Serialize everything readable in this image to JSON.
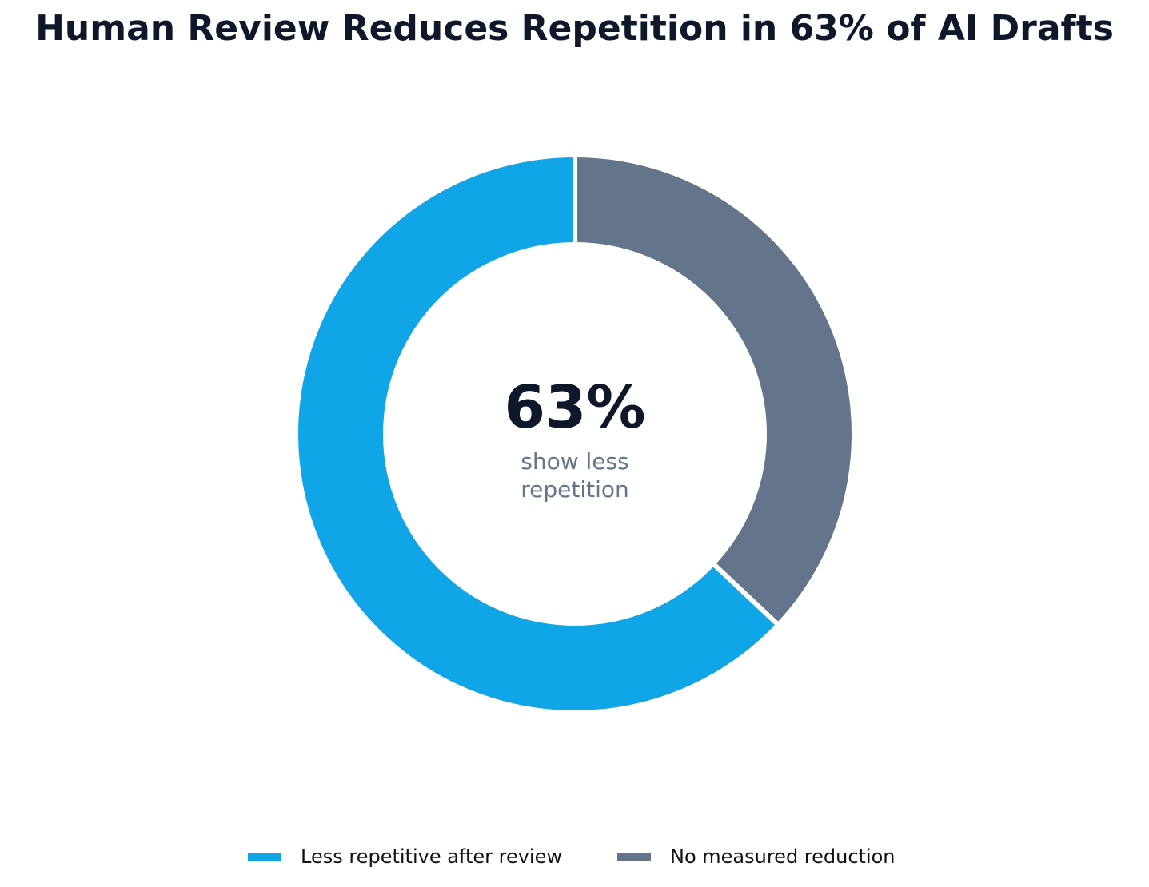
{
  "chart_data": {
    "type": "pie",
    "style": "donut",
    "title": "Human Review Reduces Repetition in 63% of AI Drafts",
    "series": [
      {
        "name": "Less repetitive after review",
        "value": 63,
        "color": "#10a5e6"
      },
      {
        "name": "No measured reduction",
        "value": 37,
        "color": "#64748b"
      }
    ],
    "center_label": {
      "value": "63%",
      "caption_line1": "show less",
      "caption_line2": "repetition"
    },
    "legend_placement": "bottom-center"
  }
}
